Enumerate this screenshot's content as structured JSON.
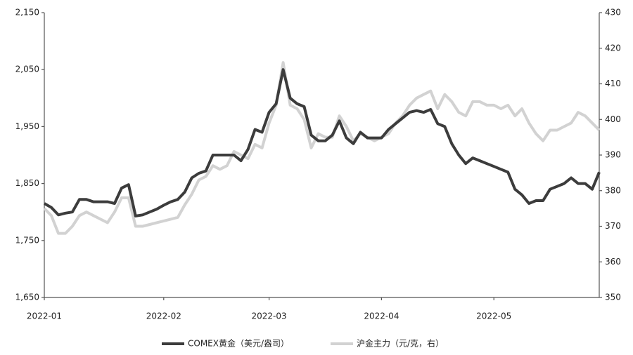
{
  "chart_data": {
    "type": "line",
    "categories": [
      "2022-01",
      null,
      null,
      null,
      null,
      null,
      null,
      null,
      null,
      null,
      null,
      null,
      null,
      null,
      null,
      null,
      null,
      "2022-02",
      null,
      null,
      null,
      null,
      null,
      null,
      null,
      null,
      null,
      null,
      null,
      null,
      null,
      null,
      "2022-03",
      null,
      null,
      null,
      null,
      null,
      null,
      null,
      null,
      null,
      null,
      null,
      null,
      null,
      null,
      null,
      "2022-04",
      null,
      null,
      null,
      null,
      null,
      null,
      null,
      null,
      null,
      null,
      null,
      null,
      null,
      null,
      null,
      "2022-05",
      null,
      null,
      null,
      null,
      null,
      null,
      null,
      null,
      null,
      null,
      null,
      null,
      null,
      null,
      null
    ],
    "series": [
      {
        "name": "COMEX黄金（美元/盎司）",
        "color": "#3c3c3c",
        "axis": "y",
        "values": [
          1815,
          1808,
          1795,
          1798,
          1800,
          1822,
          1822,
          1818,
          1818,
          1818,
          1815,
          1842,
          1848,
          1793,
          1795,
          1800,
          1805,
          1812,
          1818,
          1822,
          1835,
          1860,
          1868,
          1872,
          1900,
          1900,
          1900,
          1900,
          1890,
          1910,
          1945,
          1940,
          1975,
          1990,
          2050,
          2000,
          1990,
          1985,
          1935,
          1925,
          1925,
          1935,
          1960,
          1930,
          1920,
          1940,
          1930,
          1930,
          1930,
          1945,
          1955,
          1965,
          1975,
          1978,
          1975,
          1980,
          1955,
          1950,
          1920,
          1900,
          1885,
          1895,
          1890,
          1885,
          1880,
          1875,
          1870,
          1840,
          1830,
          1815,
          1820,
          1820,
          1840,
          1845,
          1850,
          1860,
          1850,
          1850,
          1840,
          1870
        ]
      },
      {
        "name": "沪金主力（元/克，右）",
        "color": "#d2d2d2",
        "axis": "y2",
        "values": [
          375,
          373,
          368,
          368,
          370,
          373,
          374,
          373,
          372,
          371,
          374,
          378,
          378,
          370,
          370,
          370.5,
          371,
          371.5,
          372,
          372.5,
          376,
          379,
          383,
          384,
          387,
          386,
          387,
          391,
          390,
          389,
          393,
          392,
          399,
          404,
          416,
          404,
          403,
          400,
          392,
          396,
          395,
          395,
          401,
          398,
          394,
          396,
          395,
          394,
          395,
          396,
          399,
          401,
          404,
          406,
          407,
          408,
          403,
          407,
          405,
          402,
          401,
          405,
          405,
          404,
          404,
          403,
          404,
          401,
          403,
          399,
          396,
          394,
          397,
          397,
          398,
          399,
          402,
          401,
          399,
          397
        ]
      }
    ],
    "ylim": [
      1650,
      2150
    ],
    "yticks": [
      {
        "value": 1650,
        "label": "1,650"
      },
      {
        "value": 1750,
        "label": "1,750"
      },
      {
        "value": 1850,
        "label": "1,850"
      },
      {
        "value": 1950,
        "label": "1,950"
      },
      {
        "value": 2050,
        "label": "2,050"
      },
      {
        "value": 2150,
        "label": "2,150"
      }
    ],
    "y2lim": [
      350,
      430
    ],
    "y2ticks": [
      350,
      360,
      370,
      380,
      390,
      400,
      410,
      420,
      430
    ],
    "legend": "bottom"
  }
}
